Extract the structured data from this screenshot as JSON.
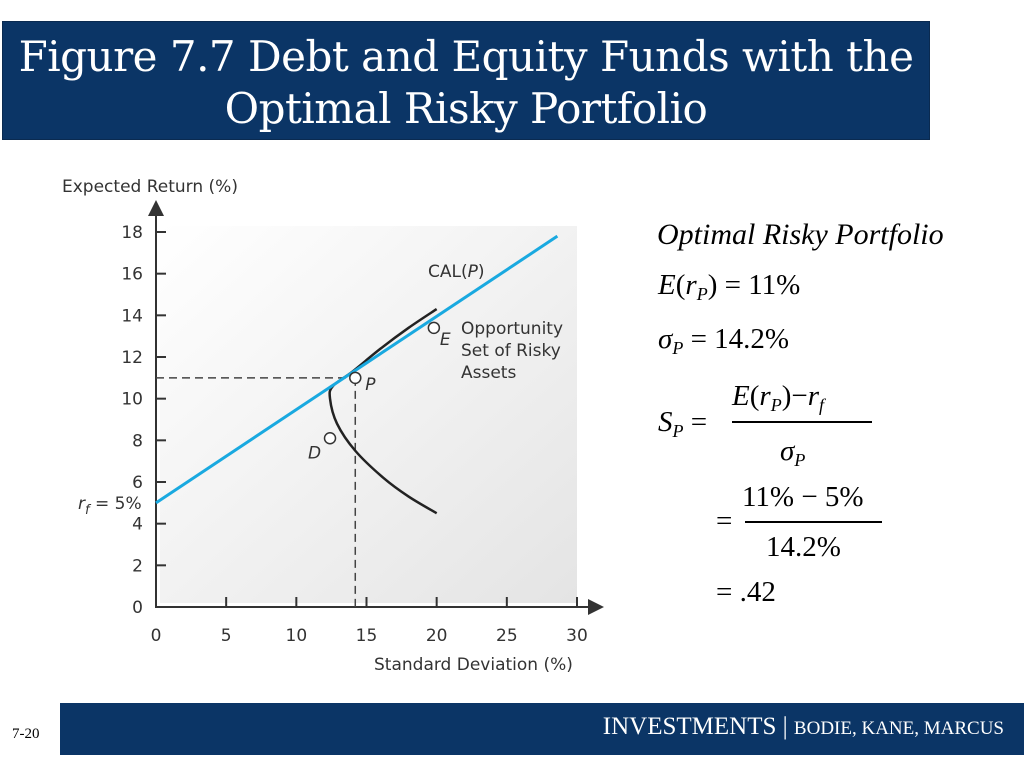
{
  "slide": {
    "title_line1": "Figure 7.7 Debt and Equity Funds with the",
    "title_line2": "Optimal Risky Portfolio",
    "number": "7-20",
    "footer_main": "INVESTMENTS",
    "footer_sep": "|",
    "footer_authors": "BODIE, KANE, MARCUS"
  },
  "colors": {
    "banner": "#0b3566",
    "cal_line": "#19a9e0",
    "frontier": "#222222"
  },
  "formulas": {
    "heading": "Optimal Risky Portfolio",
    "er_E": "E",
    "er_open": "(",
    "er_r": "r",
    "er_p": "P",
    "er_close": ")",
    "er_value": "= 11%",
    "sigma_symbol": "σ",
    "sigma_p": "P",
    "sigma_value": "= 14.2%",
    "sharpe_S": "S",
    "sharpe_p": "P",
    "sharpe_eq": "=",
    "num_E": "E",
    "num_paren_open": "(",
    "num_r": "r",
    "num_p": "P",
    "num_paren_close": ")",
    "num_minus": "−",
    "num_rf_r": "r",
    "num_rf_f": "f",
    "den_sigma": "σ",
    "den_p": "P",
    "step2_eq": "=",
    "step2_num": "11% − 5%",
    "step2_den": "14.2%",
    "step3": "= .42"
  },
  "chart_data": {
    "type": "line",
    "xlabel": "Standard Deviation (%)",
    "ylabel": "Expected Return (%)",
    "xlim": [
      0,
      30
    ],
    "ylim": [
      0,
      18
    ],
    "x_ticks": [
      0,
      5,
      10,
      15,
      20,
      25,
      30
    ],
    "y_ticks": [
      0,
      2,
      4,
      6,
      8,
      10,
      12,
      14,
      16,
      18
    ],
    "series": [
      {
        "name": "CAL(P)",
        "kind": "line",
        "x": [
          0,
          28.6
        ],
        "y": [
          5,
          17.8
        ]
      },
      {
        "name": "Opportunity Set of Risky Assets",
        "kind": "curve",
        "x": [
          20,
          18,
          16.2,
          14.2,
          12.9,
          12.4,
          12.6,
          14,
          16,
          18,
          20
        ],
        "y": [
          4.5,
          5.3,
          6.2,
          7.5,
          8.8,
          10,
          10.6,
          11.3,
          12.4,
          13.4,
          14.3
        ]
      }
    ],
    "points": [
      {
        "label": "P",
        "x": 14.2,
        "y": 11
      },
      {
        "label": "D",
        "x": 12.4,
        "y": 8.1
      },
      {
        "label": "E",
        "x": 19.8,
        "y": 13.4
      }
    ],
    "annotations": {
      "rf_label": "r",
      "rf_sub": "f",
      "rf_value": " = 5%",
      "cal_label": "CAL(",
      "cal_label_it": "P",
      "cal_label_end": ")",
      "opportunity_line1": "Opportunity",
      "opportunity_line2": "Set of Risky",
      "opportunity_line3": "Assets"
    },
    "guide_lines": {
      "x": 14.2,
      "y": 11
    },
    "grid": false
  }
}
